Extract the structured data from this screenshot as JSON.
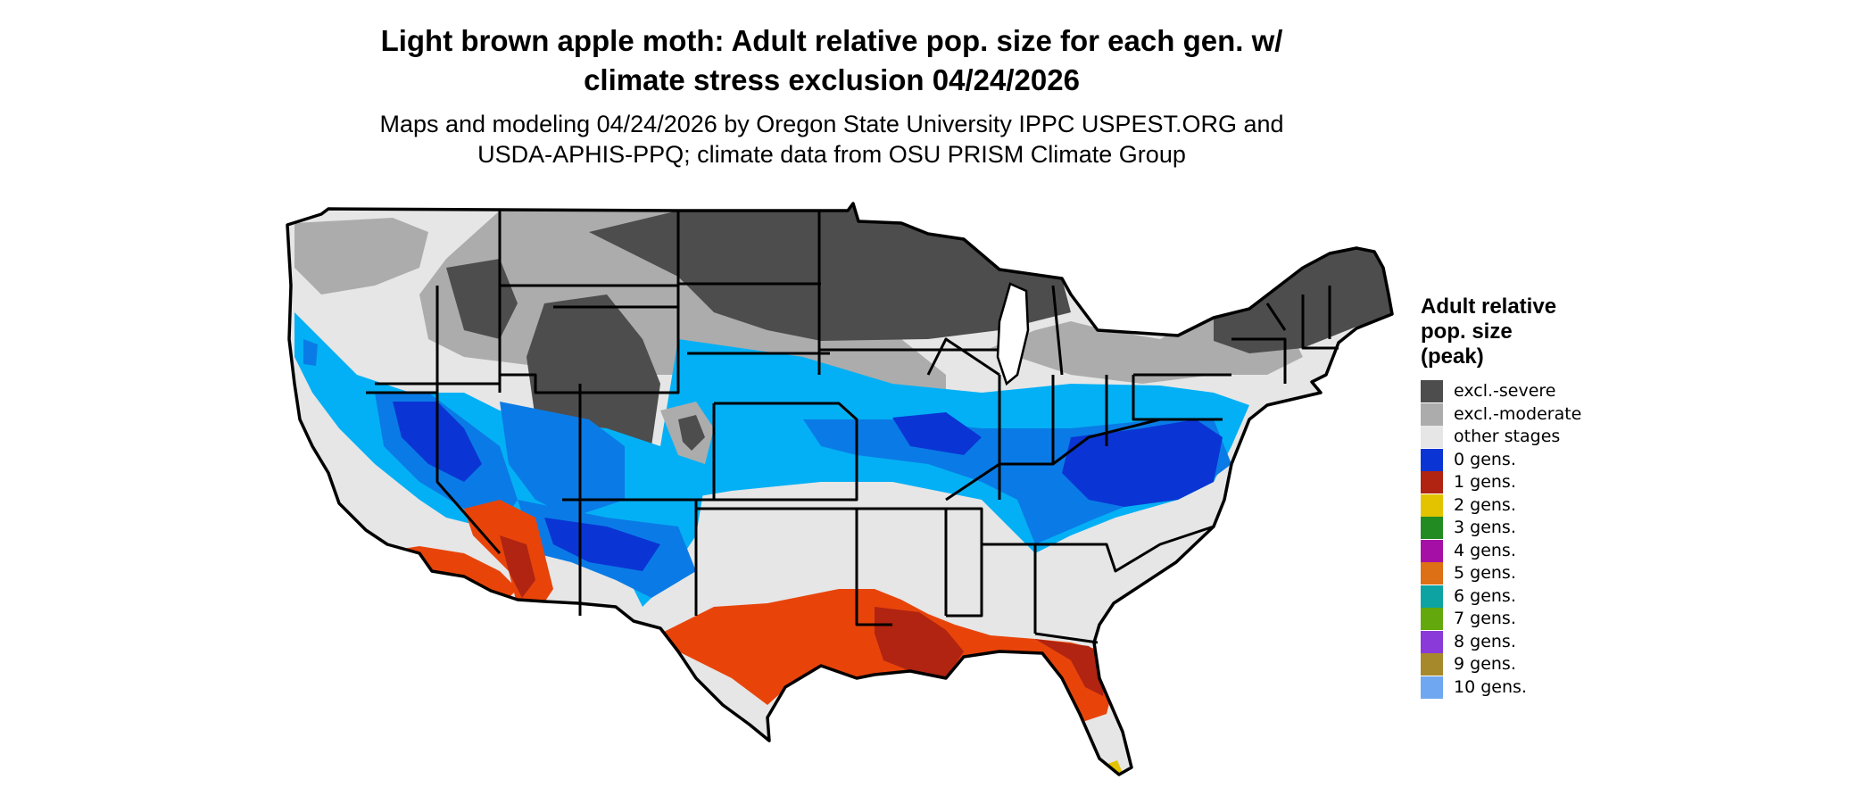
{
  "header": {
    "title_line1": "Light brown apple moth: Adult relative pop. size for each gen. w/",
    "title_line2": "climate stress exclusion 04/24/2026",
    "subtitle_line1": "Maps and modeling 04/24/2026 by Oregon State University IPPC USPEST.ORG and",
    "subtitle_line2": "USDA-APHIS-PPQ; climate data from OSU PRISM Climate Group"
  },
  "legend": {
    "title_line1": "Adult relative",
    "title_line2": "pop. size",
    "title_line3": "(peak)",
    "items": [
      {
        "label": "excl.-severe",
        "color": "#4d4d4d"
      },
      {
        "label": "excl.-moderate",
        "color": "#acacac"
      },
      {
        "label": "other stages",
        "color": "#e6e6e6"
      },
      {
        "label": "0 gens.",
        "color": "#0a35d4"
      },
      {
        "label": "1 gens.",
        "color": "#b02411"
      },
      {
        "label": "2 gens.",
        "color": "#e3c300"
      },
      {
        "label": "3 gens.",
        "color": "#228b22"
      },
      {
        "label": "4 gens.",
        "color": "#a50fa5"
      },
      {
        "label": "5 gens.",
        "color": "#dd6f14"
      },
      {
        "label": "6 gens.",
        "color": "#0ea3a3"
      },
      {
        "label": "7 gens.",
        "color": "#63a80c"
      },
      {
        "label": "8 gens.",
        "color": "#8a3ad8"
      },
      {
        "label": "9 gens.",
        "color": "#a6892a"
      },
      {
        "label": "10 gens.",
        "color": "#6fa8f0"
      }
    ]
  },
  "map": {
    "region": "Contiguous United States",
    "colors": {
      "severe": "#4d4d4d",
      "moderate": "#acacac",
      "other": "#e6e6e6",
      "blue_dark": "#0a35d4",
      "blue_mid": "#0a7be6",
      "blue_light": "#04b0f5",
      "orange_red": "#e8440a",
      "dark_red": "#b02411",
      "yellow": "#e3c300",
      "border": "#000000"
    }
  }
}
